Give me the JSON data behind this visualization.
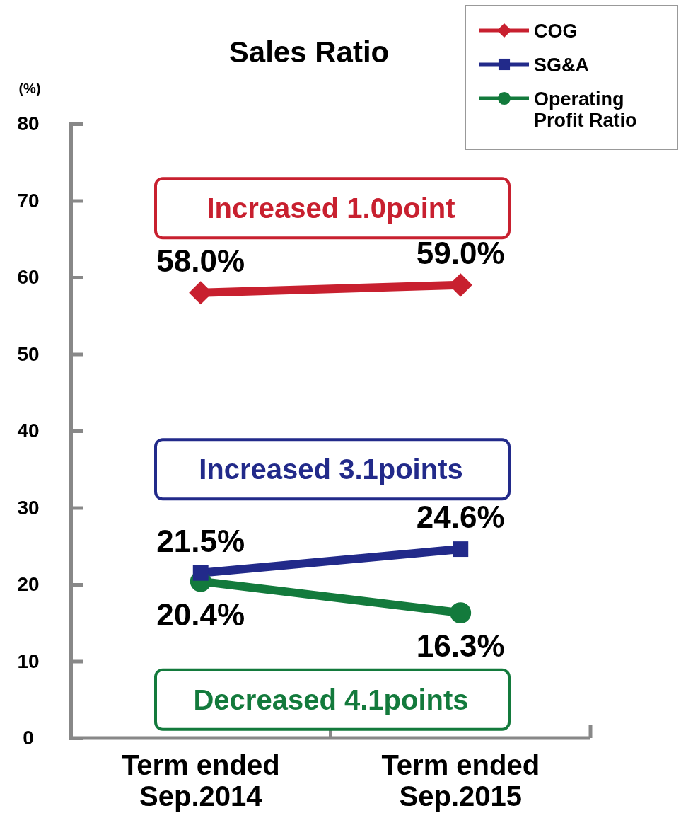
{
  "chart_data": {
    "type": "line",
    "title": "Sales Ratio",
    "ylabel": "(%)",
    "categories": [
      "Term ended\nSep.2014",
      "Term ended\nSep.2015"
    ],
    "ylim": [
      0,
      80
    ],
    "yticks": [
      0,
      10,
      20,
      30,
      40,
      50,
      60,
      70,
      80
    ],
    "series": [
      {
        "name": "COG",
        "color": "#c8202f",
        "marker": "diamond",
        "values": [
          58.0,
          59.0
        ],
        "value_labels": [
          "58.0%",
          "59.0%"
        ]
      },
      {
        "name": "SG&A",
        "color": "#222a8a",
        "marker": "square",
        "values": [
          21.5,
          24.6
        ],
        "value_labels": [
          "21.5%",
          "24.6%"
        ]
      },
      {
        "name": "Operating\nProfit Ratio",
        "color": "#137a3c",
        "marker": "circle",
        "values": [
          20.4,
          16.3
        ],
        "value_labels": [
          "20.4%",
          "16.3%"
        ]
      }
    ],
    "annotations": [
      "Increased 1.0point",
      "Increased 3.1points",
      "Decreased 4.1points"
    ],
    "legend": "top right",
    "grid": false
  }
}
